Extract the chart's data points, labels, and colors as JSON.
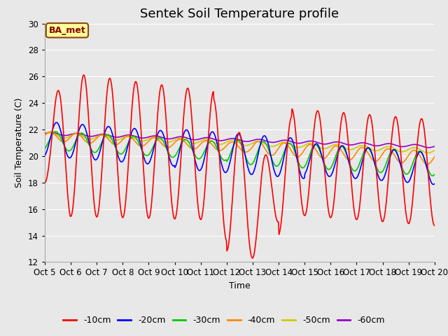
{
  "title": "Sentek Soil Temperature profile",
  "xlabel": "Time",
  "ylabel": "Soil Temperature (C)",
  "ylim": [
    12,
    30
  ],
  "yticks": [
    12,
    14,
    16,
    18,
    20,
    22,
    24,
    26,
    28,
    30
  ],
  "background_color": "#e8e8e8",
  "grid_color": "#ffffff",
  "annotation_text": "BA_met",
  "annotation_box_color": "#ffff99",
  "annotation_border_color": "#8B4513",
  "series_colors": {
    "-10cm": "#ff0000",
    "-20cm": "#0000ff",
    "-30cm": "#00cc00",
    "-40cm": "#ff8800",
    "-50cm": "#cccc00",
    "-60cm": "#9900cc"
  },
  "title_fontsize": 13,
  "label_fontsize": 9,
  "tick_fontsize": 8.5
}
